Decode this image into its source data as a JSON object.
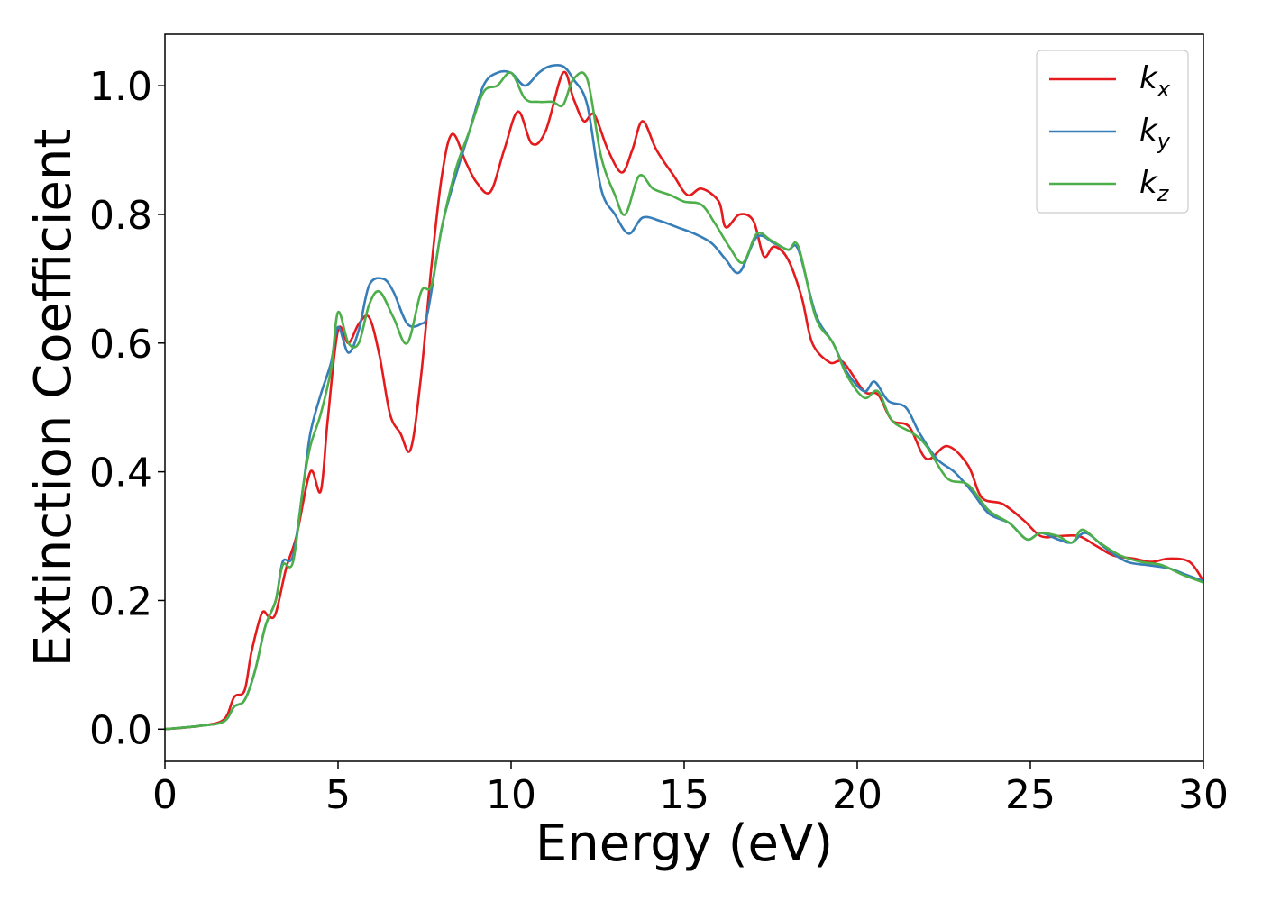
{
  "chart_data": {
    "type": "line",
    "xlabel": "Energy (eV)",
    "ylabel": "Extinction Coefficient",
    "xlim": [
      0,
      30
    ],
    "ylim": [
      -0.05,
      1.08
    ],
    "xticks": [
      0,
      5,
      10,
      15,
      20,
      25,
      30
    ],
    "yticks": [
      0.0,
      0.2,
      0.4,
      0.6,
      0.8,
      1.0
    ],
    "xtick_labels": [
      "0",
      "5",
      "10",
      "15",
      "20",
      "25",
      "30"
    ],
    "ytick_labels": [
      "0.0",
      "0.2",
      "0.4",
      "0.6",
      "0.8",
      "1.0"
    ],
    "grid": false,
    "legend_position": "top-right",
    "series": [
      {
        "name": "k_x",
        "legend_base": "k",
        "legend_sub": "x",
        "color": "#e41a1c",
        "points": [
          [
            0,
            0
          ],
          [
            1,
            0.005
          ],
          [
            1.7,
            0.015
          ],
          [
            2,
            0.05
          ],
          [
            2.3,
            0.06
          ],
          [
            2.5,
            0.12
          ],
          [
            2.8,
            0.18
          ],
          [
            3,
            0.175
          ],
          [
            3.2,
            0.18
          ],
          [
            3.5,
            0.25
          ],
          [
            3.8,
            0.3
          ],
          [
            4.2,
            0.4
          ],
          [
            4.5,
            0.37
          ],
          [
            4.7,
            0.48
          ],
          [
            5,
            0.62
          ],
          [
            5.3,
            0.6
          ],
          [
            5.6,
            0.63
          ],
          [
            5.9,
            0.64
          ],
          [
            6.2,
            0.58
          ],
          [
            6.5,
            0.49
          ],
          [
            6.8,
            0.46
          ],
          [
            7.1,
            0.435
          ],
          [
            7.4,
            0.55
          ],
          [
            7.7,
            0.72
          ],
          [
            8,
            0.86
          ],
          [
            8.3,
            0.925
          ],
          [
            8.7,
            0.88
          ],
          [
            9,
            0.85
          ],
          [
            9.4,
            0.835
          ],
          [
            9.8,
            0.9
          ],
          [
            10.2,
            0.96
          ],
          [
            10.6,
            0.91
          ],
          [
            11,
            0.93
          ],
          [
            11.5,
            1.02
          ],
          [
            11.8,
            0.98
          ],
          [
            12.1,
            0.945
          ],
          [
            12.4,
            0.955
          ],
          [
            12.8,
            0.9
          ],
          [
            13.2,
            0.865
          ],
          [
            13.5,
            0.9
          ],
          [
            13.8,
            0.945
          ],
          [
            14.2,
            0.9
          ],
          [
            14.7,
            0.86
          ],
          [
            15.1,
            0.83
          ],
          [
            15.5,
            0.84
          ],
          [
            16,
            0.82
          ],
          [
            16.2,
            0.78
          ],
          [
            16.6,
            0.8
          ],
          [
            17,
            0.79
          ],
          [
            17.3,
            0.735
          ],
          [
            17.6,
            0.75
          ],
          [
            18,
            0.73
          ],
          [
            18.4,
            0.67
          ],
          [
            18.7,
            0.6
          ],
          [
            19.2,
            0.57
          ],
          [
            19.6,
            0.57
          ],
          [
            20.2,
            0.525
          ],
          [
            20.6,
            0.52
          ],
          [
            21,
            0.48
          ],
          [
            21.5,
            0.47
          ],
          [
            22,
            0.42
          ],
          [
            22.6,
            0.44
          ],
          [
            23.2,
            0.41
          ],
          [
            23.6,
            0.36
          ],
          [
            24.2,
            0.35
          ],
          [
            24.8,
            0.325
          ],
          [
            25.3,
            0.3
          ],
          [
            25.8,
            0.3
          ],
          [
            26.4,
            0.3
          ],
          [
            26.9,
            0.285
          ],
          [
            27.4,
            0.27
          ],
          [
            28,
            0.265
          ],
          [
            28.5,
            0.26
          ],
          [
            29,
            0.265
          ],
          [
            29.6,
            0.26
          ],
          [
            30,
            0.23
          ]
        ]
      },
      {
        "name": "k_y",
        "legend_base": "k",
        "legend_sub": "y",
        "color": "#377eb8",
        "points": [
          [
            0,
            0
          ],
          [
            1,
            0.005
          ],
          [
            1.7,
            0.012
          ],
          [
            2,
            0.035
          ],
          [
            2.3,
            0.045
          ],
          [
            2.6,
            0.09
          ],
          [
            2.9,
            0.16
          ],
          [
            3.2,
            0.2
          ],
          [
            3.4,
            0.26
          ],
          [
            3.7,
            0.27
          ],
          [
            4,
            0.38
          ],
          [
            4.2,
            0.46
          ],
          [
            4.5,
            0.52
          ],
          [
            4.8,
            0.57
          ],
          [
            5,
            0.625
          ],
          [
            5.3,
            0.585
          ],
          [
            5.6,
            0.62
          ],
          [
            5.9,
            0.69
          ],
          [
            6.3,
            0.7
          ],
          [
            6.6,
            0.68
          ],
          [
            7,
            0.63
          ],
          [
            7.4,
            0.63
          ],
          [
            7.6,
            0.65
          ],
          [
            8,
            0.78
          ],
          [
            8.4,
            0.86
          ],
          [
            8.8,
            0.93
          ],
          [
            9.2,
            1.0
          ],
          [
            9.6,
            1.02
          ],
          [
            10,
            1.02
          ],
          [
            10.4,
            1.0
          ],
          [
            10.8,
            1.02
          ],
          [
            11.1,
            1.03
          ],
          [
            11.5,
            1.03
          ],
          [
            11.8,
            1.01
          ],
          [
            12.2,
            0.97
          ],
          [
            12.6,
            0.84
          ],
          [
            13,
            0.8
          ],
          [
            13.4,
            0.77
          ],
          [
            13.8,
            0.795
          ],
          [
            14.3,
            0.79
          ],
          [
            14.8,
            0.78
          ],
          [
            15.3,
            0.77
          ],
          [
            15.8,
            0.755
          ],
          [
            16.2,
            0.73
          ],
          [
            16.6,
            0.71
          ],
          [
            17.1,
            0.765
          ],
          [
            17.6,
            0.755
          ],
          [
            18,
            0.745
          ],
          [
            18.3,
            0.745
          ],
          [
            18.8,
            0.645
          ],
          [
            19.3,
            0.6
          ],
          [
            19.7,
            0.555
          ],
          [
            20.2,
            0.525
          ],
          [
            20.5,
            0.54
          ],
          [
            20.9,
            0.51
          ],
          [
            21.4,
            0.5
          ],
          [
            21.8,
            0.46
          ],
          [
            22.3,
            0.42
          ],
          [
            22.8,
            0.4
          ],
          [
            23.3,
            0.37
          ],
          [
            23.8,
            0.335
          ],
          [
            24.4,
            0.32
          ],
          [
            24.9,
            0.295
          ],
          [
            25.3,
            0.305
          ],
          [
            25.8,
            0.295
          ],
          [
            26.2,
            0.29
          ],
          [
            26.6,
            0.305
          ],
          [
            27.2,
            0.28
          ],
          [
            27.8,
            0.26
          ],
          [
            28.4,
            0.255
          ],
          [
            29,
            0.25
          ],
          [
            29.5,
            0.24
          ],
          [
            30,
            0.23
          ]
        ]
      },
      {
        "name": "k_z",
        "legend_base": "k",
        "legend_sub": "z",
        "color": "#4daf4a",
        "points": [
          [
            0,
            0
          ],
          [
            1,
            0.005
          ],
          [
            1.7,
            0.012
          ],
          [
            2,
            0.035
          ],
          [
            2.3,
            0.045
          ],
          [
            2.6,
            0.09
          ],
          [
            2.9,
            0.16
          ],
          [
            3.2,
            0.2
          ],
          [
            3.4,
            0.255
          ],
          [
            3.7,
            0.26
          ],
          [
            4,
            0.38
          ],
          [
            4.2,
            0.44
          ],
          [
            4.5,
            0.49
          ],
          [
            4.8,
            0.56
          ],
          [
            5,
            0.648
          ],
          [
            5.3,
            0.6
          ],
          [
            5.6,
            0.6
          ],
          [
            5.9,
            0.66
          ],
          [
            6.2,
            0.68
          ],
          [
            6.6,
            0.64
          ],
          [
            7,
            0.6
          ],
          [
            7.4,
            0.68
          ],
          [
            7.7,
            0.69
          ],
          [
            8,
            0.78
          ],
          [
            8.4,
            0.87
          ],
          [
            8.8,
            0.93
          ],
          [
            9.2,
            0.99
          ],
          [
            9.6,
            1.0
          ],
          [
            10,
            1.02
          ],
          [
            10.4,
            0.98
          ],
          [
            10.8,
            0.975
          ],
          [
            11.2,
            0.975
          ],
          [
            11.5,
            0.97
          ],
          [
            11.8,
            1.01
          ],
          [
            12.2,
            1.01
          ],
          [
            12.6,
            0.89
          ],
          [
            13,
            0.83
          ],
          [
            13.3,
            0.8
          ],
          [
            13.7,
            0.86
          ],
          [
            14.1,
            0.84
          ],
          [
            14.6,
            0.83
          ],
          [
            15,
            0.82
          ],
          [
            15.5,
            0.815
          ],
          [
            15.9,
            0.785
          ],
          [
            16.3,
            0.75
          ],
          [
            16.7,
            0.725
          ],
          [
            17.1,
            0.77
          ],
          [
            17.5,
            0.76
          ],
          [
            18,
            0.745
          ],
          [
            18.3,
            0.75
          ],
          [
            18.8,
            0.64
          ],
          [
            19.3,
            0.6
          ],
          [
            19.7,
            0.55
          ],
          [
            20.2,
            0.515
          ],
          [
            20.6,
            0.525
          ],
          [
            21,
            0.48
          ],
          [
            21.6,
            0.46
          ],
          [
            22,
            0.44
          ],
          [
            22.6,
            0.39
          ],
          [
            23.2,
            0.38
          ],
          [
            23.8,
            0.34
          ],
          [
            24.4,
            0.32
          ],
          [
            24.9,
            0.295
          ],
          [
            25.3,
            0.305
          ],
          [
            25.8,
            0.3
          ],
          [
            26.2,
            0.29
          ],
          [
            26.5,
            0.31
          ],
          [
            27,
            0.29
          ],
          [
            27.6,
            0.27
          ],
          [
            28.2,
            0.26
          ],
          [
            28.8,
            0.255
          ],
          [
            29.4,
            0.24
          ],
          [
            30,
            0.228
          ]
        ]
      }
    ]
  }
}
